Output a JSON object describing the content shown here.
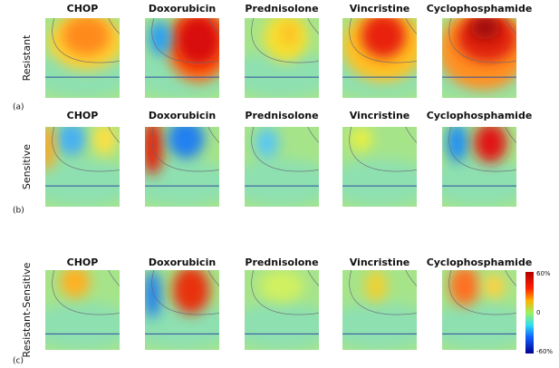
{
  "rows": [
    {
      "label": "Resistant",
      "tag": "(a)",
      "drugs": [
        "CHOP",
        "Doxorubicin",
        "Prednisolone",
        "Vincristine",
        "Cyclophosphamide"
      ]
    },
    {
      "label": "Sensitive",
      "tag": "(b)",
      "drugs": [
        "CHOP",
        "Doxorubicin",
        "Prednisolone",
        "Vincristine",
        "Cyclophosphamide"
      ]
    },
    {
      "label": "Resistant-Sensitive",
      "tag": "(c)",
      "drugs": [
        "CHOP",
        "Doxorubicin",
        "Prednisolone",
        "Vincristine",
        "Cyclophosphamide"
      ]
    }
  ],
  "colorbar": {
    "max": "60%",
    "mid": "0",
    "min": "-60%"
  }
}
